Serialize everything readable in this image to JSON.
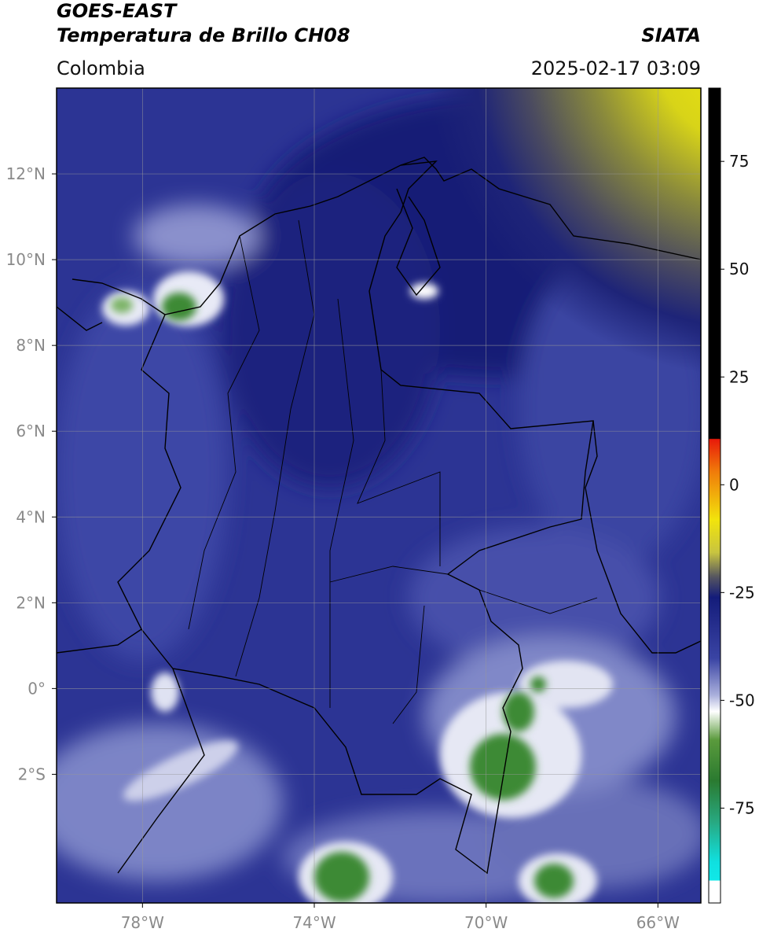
{
  "chart_data": {
    "type": "map",
    "title": "GOES-EAST",
    "subtitle": "Temperatura de Brillo CH08",
    "source": "SIATA",
    "region": "Colombia",
    "timestamp": "2025-02-17 03:09",
    "xlim": [
      -80,
      -65
    ],
    "ylim": [
      -5,
      14
    ],
    "xticks": [
      {
        "value": -78,
        "label": "78°W"
      },
      {
        "value": -74,
        "label": "74°W"
      },
      {
        "value": -70,
        "label": "70°W"
      },
      {
        "value": -66,
        "label": "66°W"
      }
    ],
    "yticks": [
      {
        "value": 12,
        "label": "12°N"
      },
      {
        "value": 10,
        "label": "10°N"
      },
      {
        "value": 8,
        "label": "8°N"
      },
      {
        "value": 6,
        "label": "6°N"
      },
      {
        "value": 4,
        "label": "4°N"
      },
      {
        "value": 2,
        "label": "2°N"
      },
      {
        "value": 0,
        "label": "0°"
      },
      {
        "value": -2,
        "label": "2°S"
      }
    ],
    "grid": true,
    "colorbar": {
      "lim": [
        -97,
        92
      ],
      "ticks": [
        75,
        50,
        25,
        0,
        -25,
        -50,
        -75
      ]
    }
  }
}
